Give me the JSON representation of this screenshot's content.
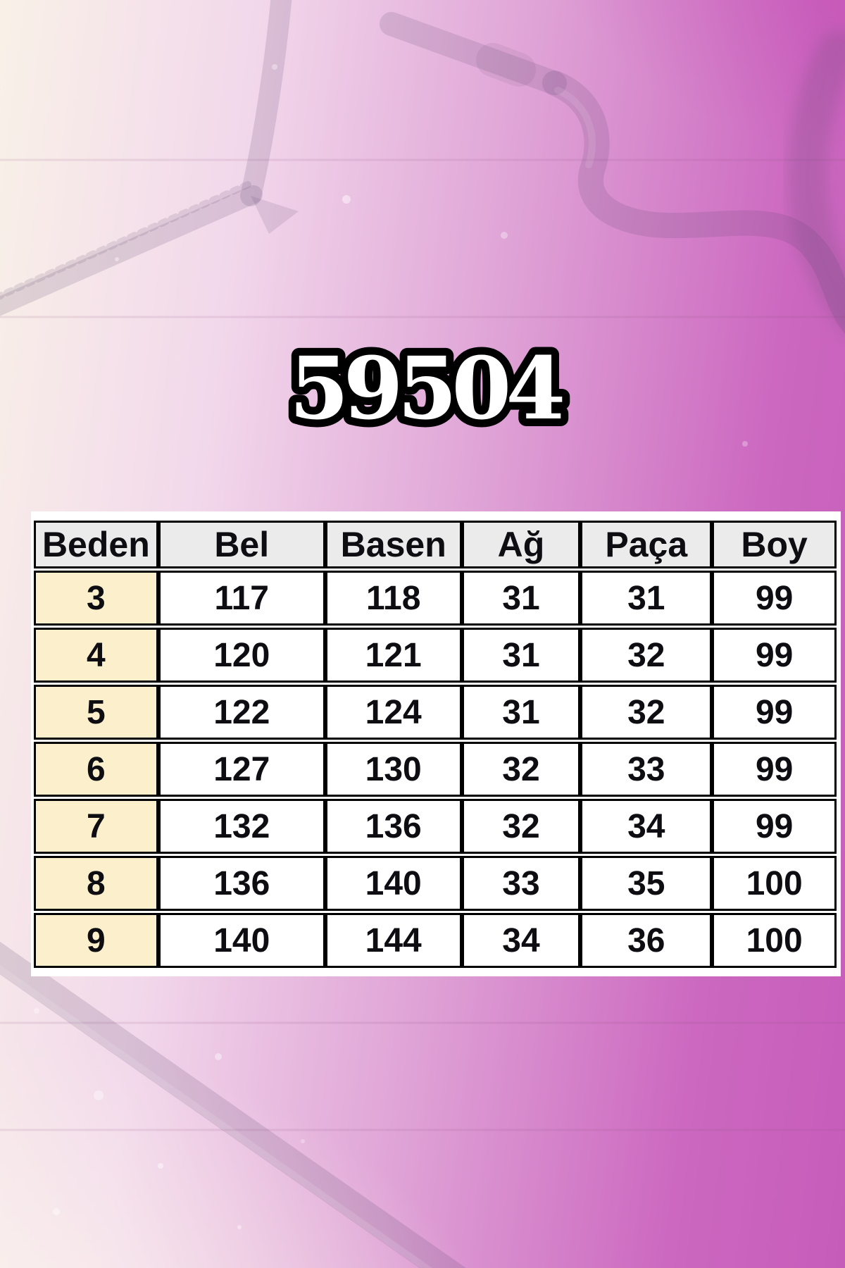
{
  "title": "59504",
  "size_chart": {
    "columns": [
      "Beden",
      "Bel",
      "Basen",
      "Ağ",
      "Paça",
      "Boy"
    ],
    "rows": [
      [
        "3",
        "117",
        "118",
        "31",
        "31",
        "99"
      ],
      [
        "4",
        "120",
        "121",
        "31",
        "32",
        "99"
      ],
      [
        "5",
        "122",
        "124",
        "31",
        "32",
        "99"
      ],
      [
        "6",
        "127",
        "130",
        "32",
        "33",
        "99"
      ],
      [
        "7",
        "132",
        "136",
        "32",
        "34",
        "99"
      ],
      [
        "8",
        "136",
        "140",
        "33",
        "35",
        "100"
      ],
      [
        "9",
        "140",
        "144",
        "34",
        "36",
        "100"
      ]
    ]
  },
  "chart_data": {
    "type": "table",
    "title": "59504",
    "columns": [
      "Beden",
      "Bel",
      "Basen",
      "Ağ",
      "Paça",
      "Boy"
    ],
    "rows": [
      [
        3,
        117,
        118,
        31,
        31,
        99
      ],
      [
        4,
        120,
        121,
        31,
        32,
        99
      ],
      [
        5,
        122,
        124,
        31,
        32,
        99
      ],
      [
        6,
        127,
        130,
        32,
        33,
        99
      ],
      [
        7,
        132,
        136,
        32,
        34,
        99
      ],
      [
        8,
        136,
        140,
        33,
        35,
        100
      ],
      [
        9,
        140,
        144,
        34,
        36,
        100
      ]
    ]
  },
  "colors": {
    "header_bg": "#ebebeb",
    "size_column_bg": "#fbf0cb",
    "cell_bg": "#ffffff",
    "grid": "#000000",
    "background_left": "#f9f1e8",
    "background_right": "#c65cba",
    "title_fill": "#ffffff",
    "title_outline": "#000000"
  }
}
